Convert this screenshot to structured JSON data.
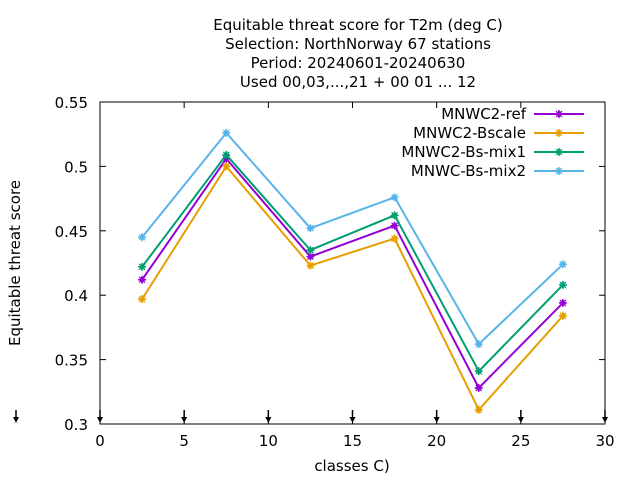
{
  "chart_data": {
    "type": "line",
    "title_lines": [
      "Equitable threat score  for T2m (deg C)",
      "Selection: NorthNorway     67 stations",
      "Period: 20240601-20240630",
      "Used 00,03,...,21 + 00 01 ... 12"
    ],
    "xlabel": "classes C)",
    "ylabel": "Equitable threat score",
    "xlim": [
      0,
      30
    ],
    "ylim": [
      0.3,
      0.55
    ],
    "xticks": [
      0,
      5,
      10,
      15,
      20,
      25,
      30
    ],
    "xtick_labels": [
      "0",
      "5",
      "10",
      "15",
      "20",
      "25",
      "30"
    ],
    "yticks": [
      0.3,
      0.35,
      0.4,
      0.45,
      0.5,
      0.55
    ],
    "ytick_labels": [
      "0.3",
      "0.35",
      "0.4",
      "0.45",
      "0.5",
      "0.55"
    ],
    "grid": false,
    "legend_position": "top-right",
    "x": [
      2.5,
      7.5,
      12.5,
      17.5,
      22.5,
      27.5
    ],
    "series": [
      {
        "name": "MNWC2-ref",
        "color": "#9400d3",
        "values": [
          0.412,
          0.506,
          0.43,
          0.454,
          0.328,
          0.394
        ]
      },
      {
        "name": "MNWC2-Bscale",
        "color": "#e69f00",
        "values": [
          0.397,
          0.5,
          0.423,
          0.444,
          0.311,
          0.384
        ]
      },
      {
        "name": "MNWC2-Bs-mix1",
        "color": "#009e73",
        "values": [
          0.422,
          0.509,
          0.435,
          0.462,
          0.341,
          0.408
        ]
      },
      {
        "name": "MNWC-Bs-mix2",
        "color": "#56b4e9",
        "values": [
          0.445,
          0.526,
          0.452,
          0.476,
          0.362,
          0.424
        ]
      }
    ],
    "bottom_markers_x": [
      0,
      5,
      10,
      15,
      20,
      25,
      30
    ]
  }
}
